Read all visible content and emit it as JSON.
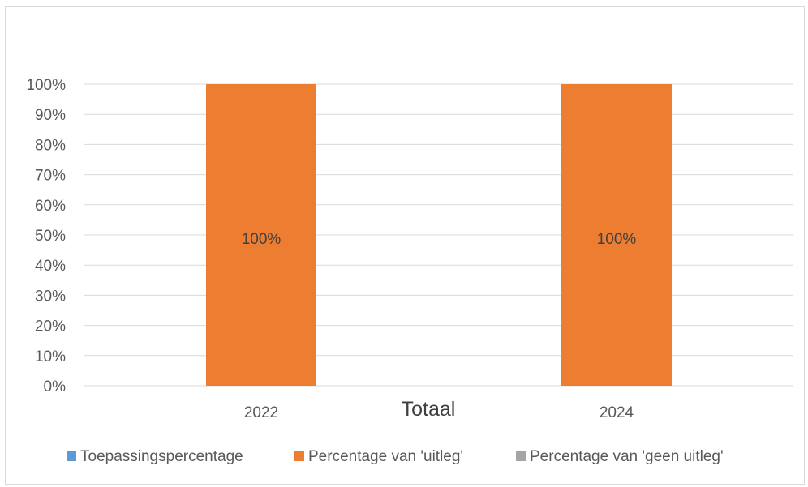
{
  "chart_data": {
    "type": "bar",
    "stacked": true,
    "categories": [
      "2022",
      "2024"
    ],
    "series": [
      {
        "name": "Toepassingspercentage",
        "color": "#5b9bd5",
        "values": [
          0,
          0
        ]
      },
      {
        "name": "Percentage van 'uitleg'",
        "color": "#ed7d31",
        "values": [
          100,
          100
        ]
      },
      {
        "name": "Percentage van 'geen uitleg'",
        "color": "#a5a5a5",
        "values": [
          0,
          0
        ]
      }
    ],
    "data_labels": [
      "100%",
      "100%"
    ],
    "title": "",
    "xlabel": "Totaal",
    "ylabel": "",
    "ylim": [
      0,
      100
    ],
    "yticks": [
      "0%",
      "10%",
      "20%",
      "30%",
      "40%",
      "50%",
      "60%",
      "70%",
      "80%",
      "90%",
      "100%"
    ],
    "grid": true,
    "legend_position": "bottom"
  }
}
